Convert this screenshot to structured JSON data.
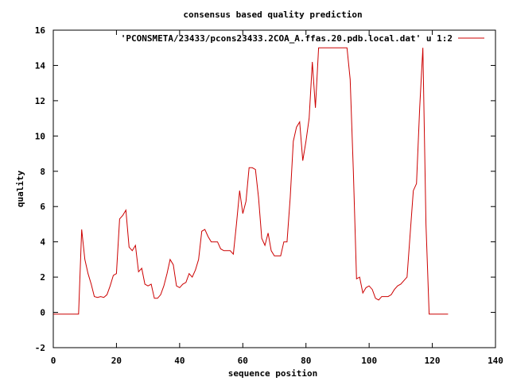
{
  "chart_data": {
    "type": "line",
    "title": "consensus based quality prediction",
    "xlabel": "sequence position",
    "ylabel": "quality",
    "xlim": [
      0,
      140
    ],
    "ylim": [
      -2,
      16
    ],
    "xticks": [
      0,
      20,
      40,
      60,
      80,
      100,
      120,
      140
    ],
    "yticks": [
      -2,
      0,
      2,
      4,
      6,
      8,
      10,
      12,
      14,
      16
    ],
    "grid": false,
    "legend_position": "top-right",
    "series": [
      {
        "name": "'PCONSMETA/23433/pcons23433.2COA_A.ffas.20.pdb.local.dat' u 1:2",
        "color": "#cc0000",
        "x": [
          0,
          1,
          2,
          3,
          4,
          5,
          6,
          7,
          8,
          9,
          10,
          11,
          12,
          13,
          14,
          15,
          16,
          17,
          18,
          19,
          20,
          21,
          22,
          23,
          24,
          25,
          26,
          27,
          28,
          29,
          30,
          31,
          32,
          33,
          34,
          35,
          36,
          37,
          38,
          39,
          40,
          41,
          42,
          43,
          44,
          45,
          46,
          47,
          48,
          49,
          50,
          51,
          52,
          53,
          54,
          55,
          56,
          57,
          58,
          59,
          60,
          61,
          62,
          63,
          64,
          65,
          66,
          67,
          68,
          69,
          70,
          71,
          72,
          73,
          74,
          75,
          76,
          77,
          78,
          79,
          80,
          81,
          82,
          83,
          84,
          85,
          86,
          87,
          88,
          89,
          90,
          91,
          92,
          93,
          94,
          95,
          96,
          97,
          98,
          99,
          100,
          101,
          102,
          103,
          104,
          105,
          106,
          107,
          108,
          109,
          110,
          111,
          112,
          113,
          114,
          115,
          116,
          117,
          118,
          119,
          120,
          121,
          122,
          123,
          124,
          125
        ],
        "y": [
          -0.1,
          -0.1,
          -0.1,
          -0.1,
          -0.1,
          -0.1,
          -0.1,
          -0.1,
          -0.1,
          4.7,
          3.0,
          2.2,
          1.6,
          0.9,
          0.85,
          0.9,
          0.85,
          1.0,
          1.5,
          2.1,
          2.2,
          5.3,
          5.5,
          5.8,
          3.7,
          3.5,
          3.8,
          2.3,
          2.5,
          1.6,
          1.5,
          1.6,
          0.8,
          0.8,
          1.0,
          1.5,
          2.2,
          3.0,
          2.7,
          1.5,
          1.4,
          1.6,
          1.7,
          2.2,
          2.0,
          2.4,
          3.0,
          4.6,
          4.7,
          4.3,
          4.0,
          4.0,
          4.0,
          3.6,
          3.5,
          3.5,
          3.5,
          3.3,
          5.0,
          6.9,
          5.6,
          6.3,
          8.2,
          8.2,
          8.1,
          6.5,
          4.2,
          3.8,
          4.5,
          3.5,
          3.2,
          3.2,
          3.2,
          4.0,
          4.0,
          6.5,
          9.7,
          10.5,
          10.8,
          8.6,
          9.7,
          11.0,
          14.2,
          11.6,
          15.0,
          15.0,
          15.0,
          15.0,
          15.0,
          15.0,
          15.0,
          15.0,
          15.0,
          15.0,
          13.2,
          8.0,
          1.9,
          2.0,
          1.1,
          1.4,
          1.5,
          1.3,
          0.8,
          0.7,
          0.9,
          0.9,
          0.9,
          1.0,
          1.3,
          1.5,
          1.6,
          1.8,
          2.0,
          4.5,
          6.9,
          7.3,
          11.6,
          15.0,
          5.0,
          -0.1,
          -0.1,
          -0.1,
          -0.1,
          -0.1,
          -0.1,
          -0.1
        ]
      }
    ]
  }
}
